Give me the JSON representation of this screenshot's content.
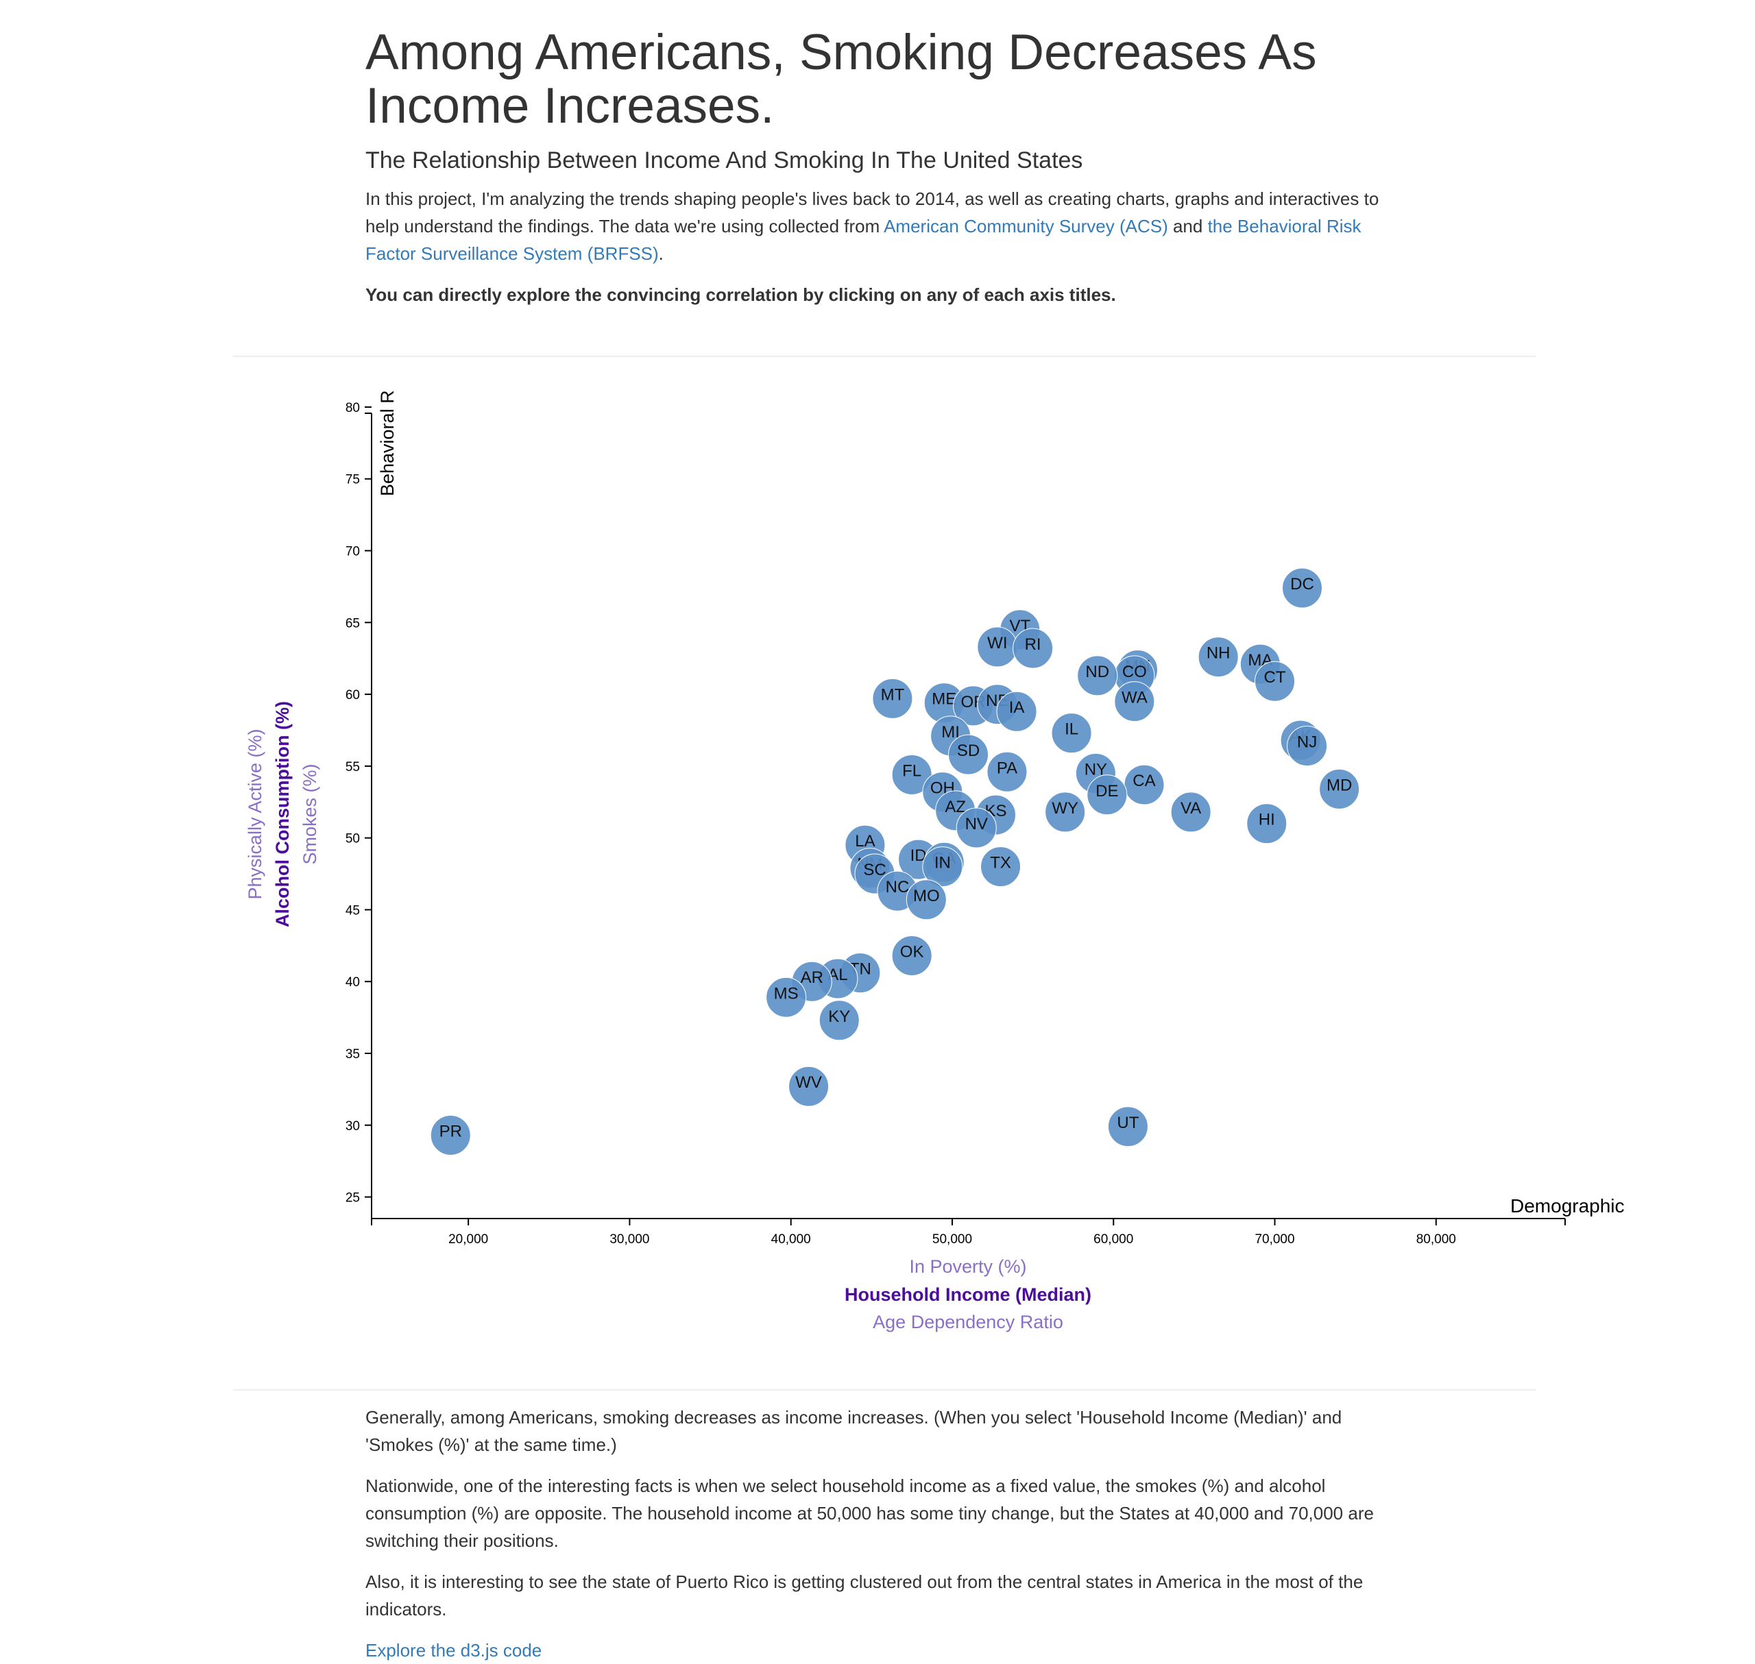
{
  "header": {
    "title_line1": "Among Americans, Smoking Decreases As",
    "title_line2": "Income Increases.",
    "subtitle": "The Relationship Between Income And Smoking In The United States",
    "intro_text_1": "In this project, I'm analyzing the trends shaping people's lives back to 2014, as well as creating charts, graphs and interactives to help understand the findings. The data we're using collected from ",
    "acs_link": "American Community Survey (ACS)",
    "intro_text_2": " and ",
    "brfss_link": "the Behavioral Risk Factor Surveillance System (BRFSS)",
    "intro_text_3": ".",
    "instruction": "You can directly explore the convincing correlation by clicking on any of each axis titles."
  },
  "colors": {
    "marker": "#5b8fc6",
    "active_axis": "#4b0d9a",
    "inactive_axis": "#8a6fc4",
    "link": "#337ab7",
    "text": "#333333"
  },
  "chart_data": {
    "type": "scatter",
    "xlabel": "Household Income (Median)",
    "ylabel": "Alcohol Consumption (%)",
    "x_axis_options": [
      "In Poverty (%)",
      "Household Income (Median)",
      "Age Dependency Ratio"
    ],
    "y_axis_options": [
      "Physically Active (%)",
      "Alcohol Consumption (%)",
      "Smokes (%)"
    ],
    "active_x": "Household Income (Median)",
    "active_y": "Alcohol Consumption (%)",
    "xlim": [
      14000,
      88000
    ],
    "ylim": [
      23.5,
      81
    ],
    "x_ticks": [
      20000,
      30000,
      40000,
      50000,
      60000,
      70000,
      80000
    ],
    "x_tick_labels": [
      "20,000",
      "30,000",
      "40,000",
      "50,000",
      "60,000",
      "70,000",
      "80,000"
    ],
    "y_ticks": [
      25,
      30,
      35,
      40,
      45,
      50,
      55,
      60,
      65,
      70,
      75,
      80
    ],
    "y_tick_labels": [
      "25",
      "30",
      "35",
      "40",
      "45",
      "50",
      "55",
      "60",
      "65",
      "70",
      "75",
      "80"
    ],
    "annotation_y": "Behavioral R",
    "annotation_x": "Demographic",
    "points": [
      {
        "label": "DC",
        "x": 71700,
        "y": 67.4
      },
      {
        "label": "VT",
        "x": 54200,
        "y": 64.5
      },
      {
        "label": "WI",
        "x": 52800,
        "y": 63.3
      },
      {
        "label": "RI",
        "x": 55000,
        "y": 63.2
      },
      {
        "label": "NH",
        "x": 66500,
        "y": 62.6
      },
      {
        "label": "MA",
        "x": 69100,
        "y": 62.1
      },
      {
        "label": "MN",
        "x": 61500,
        "y": 61.7
      },
      {
        "label": "CO",
        "x": 61300,
        "y": 61.3
      },
      {
        "label": "ND",
        "x": 59000,
        "y": 61.3
      },
      {
        "label": "CT",
        "x": 70000,
        "y": 60.9
      },
      {
        "label": "MT",
        "x": 46300,
        "y": 59.7
      },
      {
        "label": "WA",
        "x": 61300,
        "y": 59.5
      },
      {
        "label": "ME",
        "x": 49500,
        "y": 59.4
      },
      {
        "label": "OR",
        "x": 51300,
        "y": 59.2
      },
      {
        "label": "NE",
        "x": 52800,
        "y": 59.3
      },
      {
        "label": "IA",
        "x": 54000,
        "y": 58.8
      },
      {
        "label": "IL",
        "x": 57400,
        "y": 57.3
      },
      {
        "label": "MI",
        "x": 49900,
        "y": 57.1
      },
      {
        "label": "AK",
        "x": 71600,
        "y": 56.8
      },
      {
        "label": "NJ",
        "x": 72000,
        "y": 56.4
      },
      {
        "label": "SD",
        "x": 51000,
        "y": 55.8
      },
      {
        "label": "PA",
        "x": 53400,
        "y": 54.6
      },
      {
        "label": "NY",
        "x": 58900,
        "y": 54.5
      },
      {
        "label": "FL",
        "x": 47500,
        "y": 54.4
      },
      {
        "label": "CA",
        "x": 61900,
        "y": 53.7
      },
      {
        "label": "MD",
        "x": 74000,
        "y": 53.4
      },
      {
        "label": "OH",
        "x": 49400,
        "y": 53.2
      },
      {
        "label": "DE",
        "x": 59600,
        "y": 53.0
      },
      {
        "label": "AZ",
        "x": 50200,
        "y": 51.9
      },
      {
        "label": "KS",
        "x": 52700,
        "y": 51.6
      },
      {
        "label": "WY",
        "x": 57000,
        "y": 51.8
      },
      {
        "label": "VA",
        "x": 64800,
        "y": 51.8
      },
      {
        "label": "HI",
        "x": 69500,
        "y": 51.0
      },
      {
        "label": "NV",
        "x": 51500,
        "y": 50.7
      },
      {
        "label": "LA",
        "x": 44600,
        "y": 49.5
      },
      {
        "label": "ID",
        "x": 47900,
        "y": 48.5
      },
      {
        "label": "GA",
        "x": 49500,
        "y": 48.3
      },
      {
        "label": "IN",
        "x": 49400,
        "y": 48.0
      },
      {
        "label": "NM",
        "x": 44900,
        "y": 47.9
      },
      {
        "label": "SC",
        "x": 45200,
        "y": 47.5
      },
      {
        "label": "TX",
        "x": 53000,
        "y": 48.0
      },
      {
        "label": "NC",
        "x": 46600,
        "y": 46.3
      },
      {
        "label": "MO",
        "x": 48400,
        "y": 45.7
      },
      {
        "label": "OK",
        "x": 47500,
        "y": 41.8
      },
      {
        "label": "TN",
        "x": 44300,
        "y": 40.6
      },
      {
        "label": "AL",
        "x": 42900,
        "y": 40.2
      },
      {
        "label": "AR",
        "x": 41300,
        "y": 40.0
      },
      {
        "label": "MS",
        "x": 39700,
        "y": 38.9
      },
      {
        "label": "KY",
        "x": 43000,
        "y": 37.3
      },
      {
        "label": "WV",
        "x": 41100,
        "y": 32.7
      },
      {
        "label": "UT",
        "x": 60900,
        "y": 29.9
      },
      {
        "label": "PR",
        "x": 18900,
        "y": 29.3
      }
    ]
  },
  "conclusion": {
    "p1": "Generally, among Americans, smoking decreases as income increases. (When you select 'Household Income (Median)' and 'Smokes (%)' at the same time.)",
    "p2": "Nationwide, one of the interesting facts is when we select household income as a fixed value, the smokes (%) and alcohol consumption (%) are opposite. The household income at 50,000 has some tiny change, but the States at 40,000 and 70,000 are switching their positions.",
    "p3": "Also, it is interesting to see the state of Puerto Rico is getting clustered out from the central states in America in the most of the indicators.",
    "code_link": "Explore the d3.js code"
  }
}
